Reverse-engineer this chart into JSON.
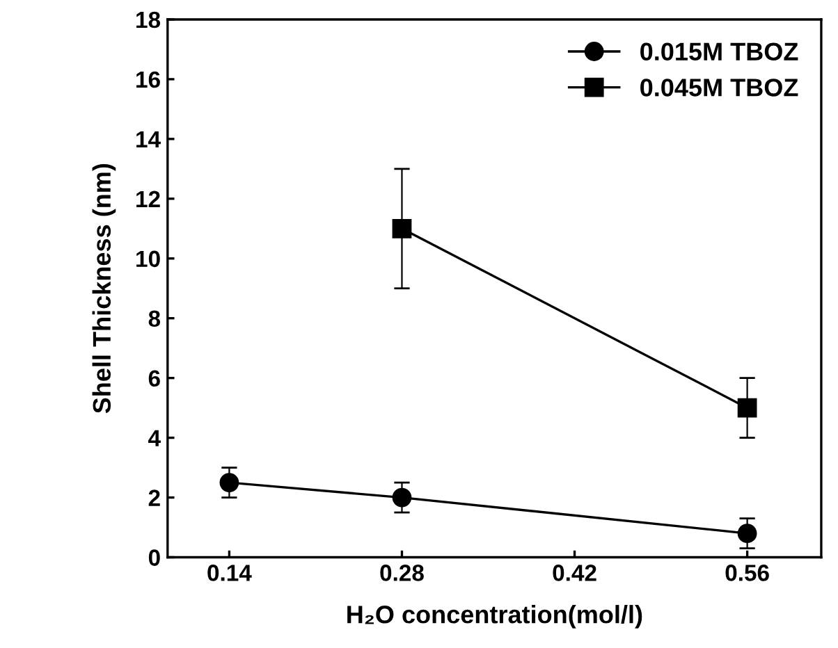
{
  "chart_data": {
    "type": "line",
    "xlabel": "H₂O concentration(mol/l)",
    "ylabel": "Shell Thickness (nm)",
    "xlim": [
      0.09,
      0.62
    ],
    "xticks": [
      0.14,
      0.28,
      0.42,
      0.56
    ],
    "ylim": [
      0,
      18
    ],
    "yticks": [
      0,
      2,
      4,
      6,
      8,
      10,
      12,
      14,
      16,
      18
    ],
    "legend": "top right",
    "grid": false,
    "series": [
      {
        "name": "0.015M TBOZ",
        "color": "#000000",
        "marker": "circle",
        "x": [
          0.14,
          0.28,
          0.56
        ],
        "values": [
          2.5,
          2.0,
          0.8
        ],
        "errors": [
          0.5,
          0.5,
          0.5
        ]
      },
      {
        "name": "0.045M TBOZ",
        "color": "#000000",
        "marker": "square",
        "x": [
          0.28,
          0.56
        ],
        "values": [
          11,
          5
        ],
        "errors": [
          2,
          1
        ]
      }
    ]
  }
}
